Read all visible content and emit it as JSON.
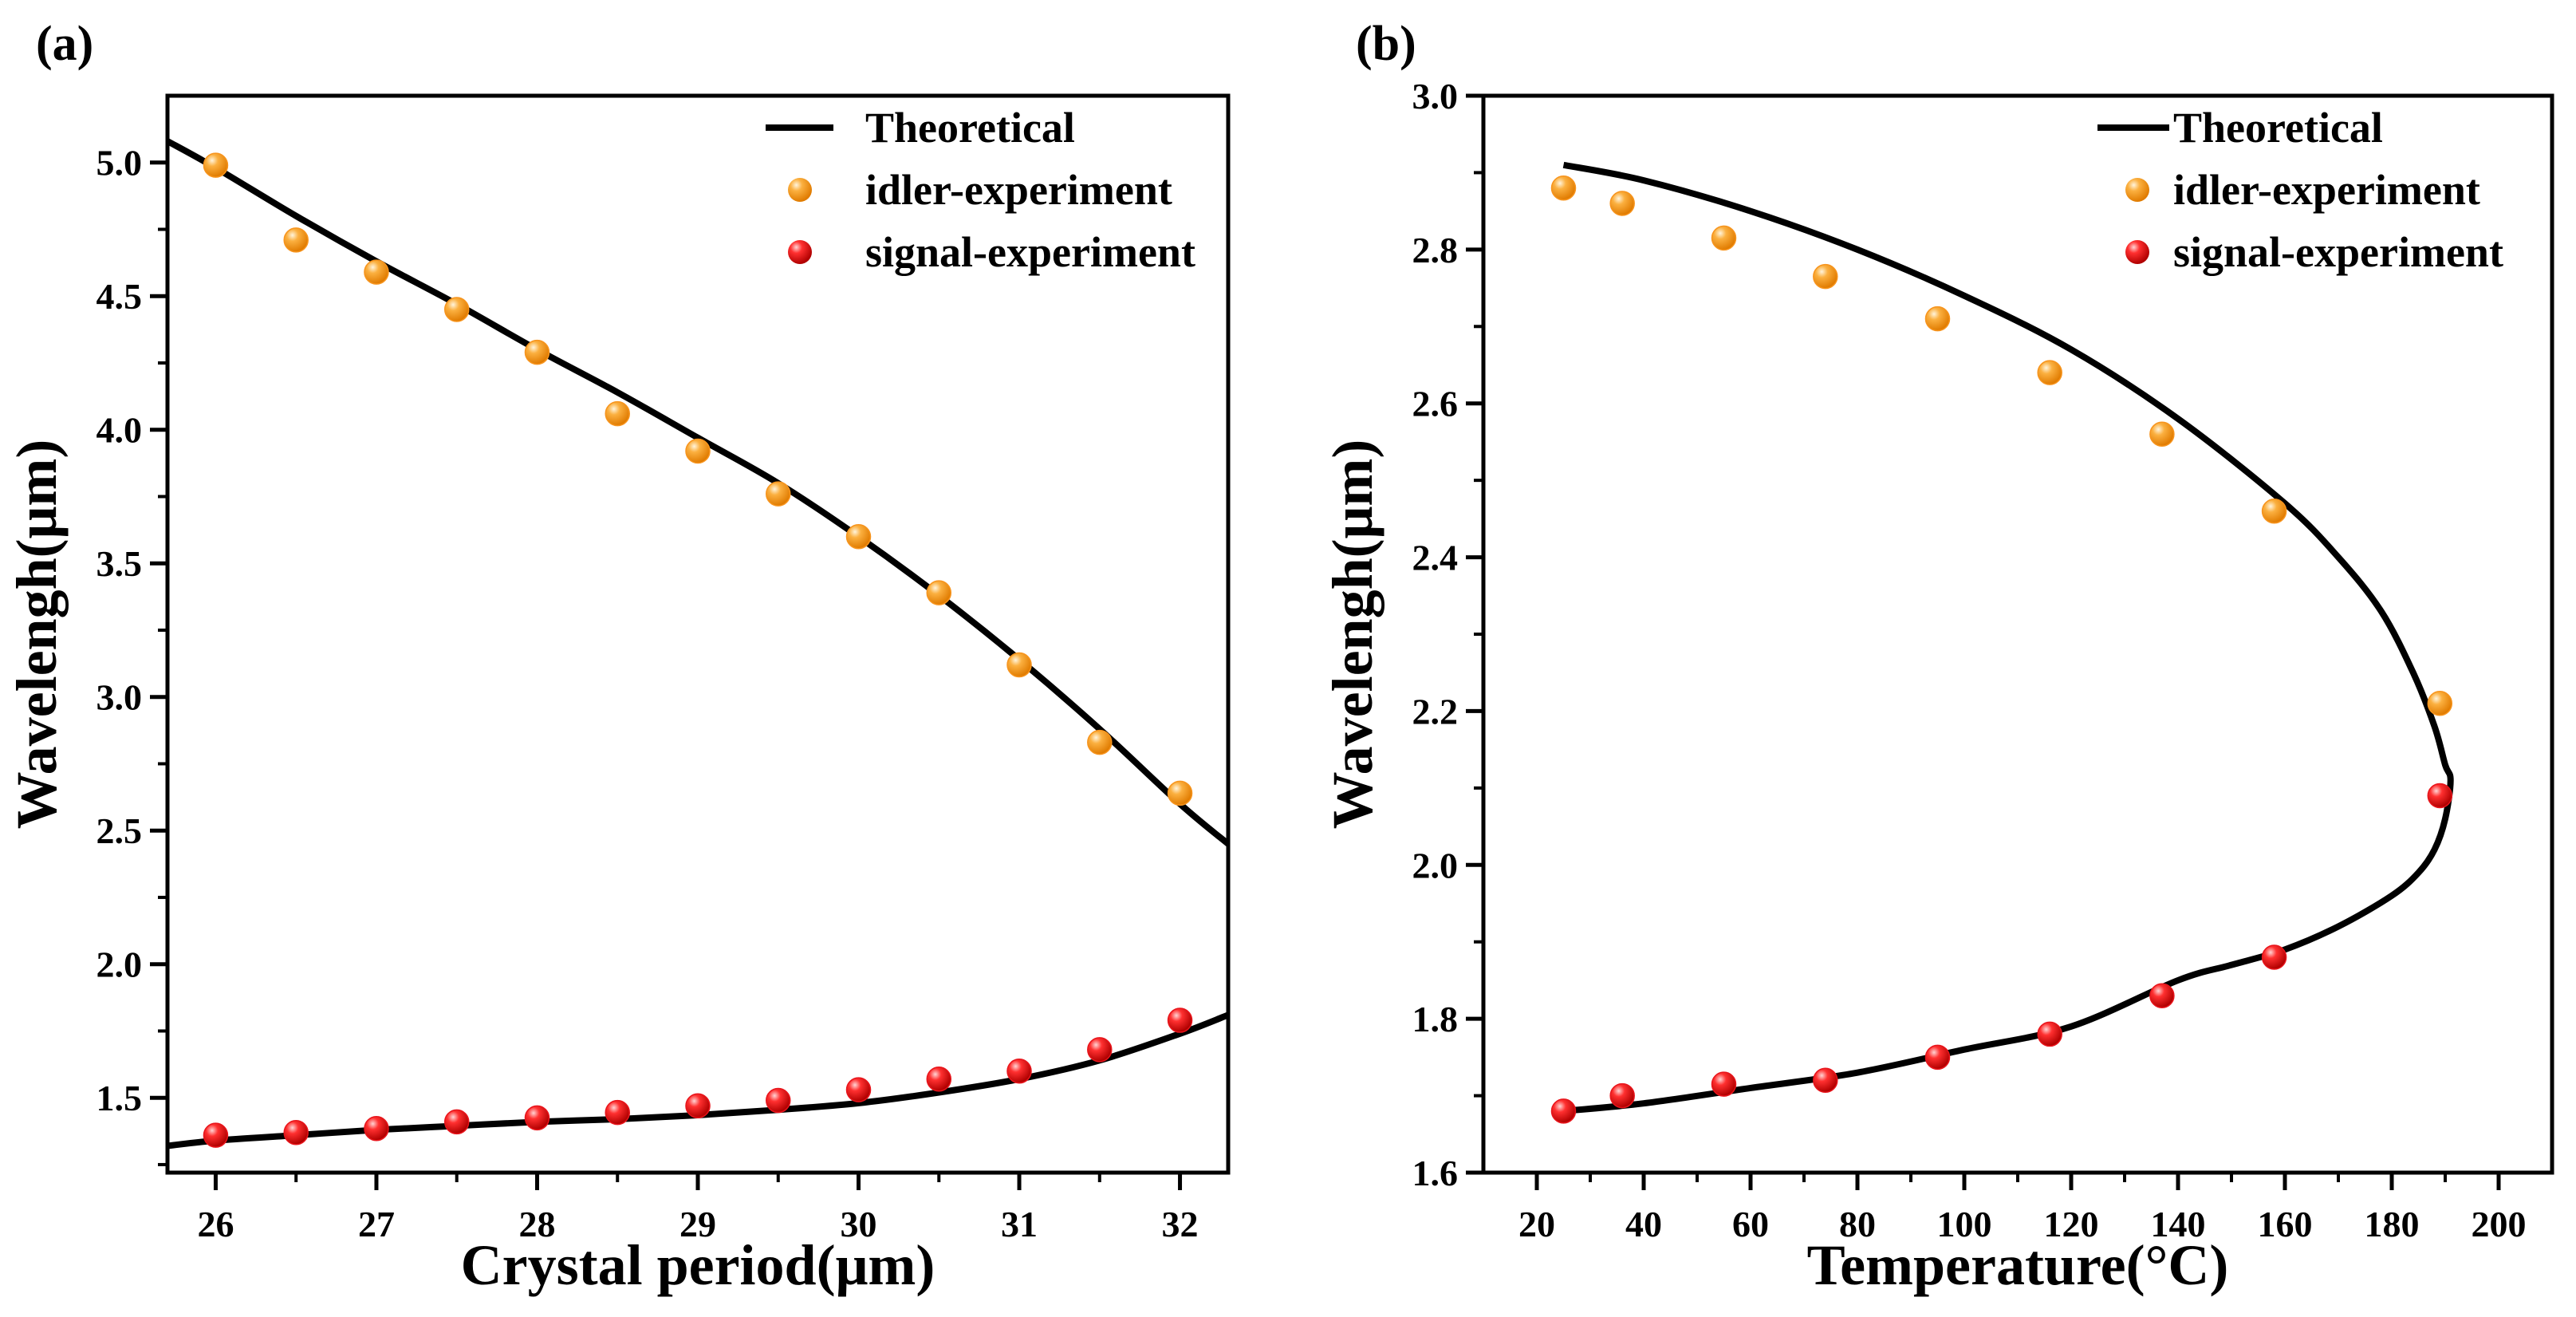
{
  "chart_data": [
    {
      "type": "scatter",
      "panel_label": "(a)",
      "xlabel": "Crystal period(μm)",
      "ylabel": "Wavelengh(μm)",
      "xlim": [
        25.7,
        32.3
      ],
      "ylim": [
        1.22,
        5.25
      ],
      "xticks": [
        26,
        27,
        28,
        29,
        30,
        31,
        32
      ],
      "xtick_labels": [
        "26",
        "27",
        "28",
        "29",
        "30",
        "31",
        "32"
      ],
      "minor_xticks": [
        26.5,
        27.5,
        28.5,
        29.5,
        30.5,
        31.5
      ],
      "yticks": [
        1.5,
        2.0,
        2.5,
        3.0,
        3.5,
        4.0,
        4.5,
        5.0
      ],
      "ytick_labels": [
        "1.5",
        "2.0",
        "2.5",
        "3.0",
        "3.5",
        "4.0",
        "4.5",
        "5.0"
      ],
      "minor_yticks": [
        1.25,
        1.75,
        2.25,
        2.75,
        3.25,
        3.75,
        4.25,
        4.75
      ],
      "legend_position": "top-right",
      "legend": [
        "Theoretical",
        "idler-experiment",
        "signal-experiment"
      ],
      "series": [
        {
          "name": "Theoretical",
          "kind": "line",
          "color": "#000000",
          "segments": [
            {
              "x": [
                25.7,
                26,
                26.5,
                27,
                27.5,
                28,
                28.5,
                29,
                29.5,
                30,
                30.5,
                31,
                31.5,
                32,
                32.3
              ],
              "y": [
                5.08,
                4.98,
                4.8,
                4.63,
                4.47,
                4.3,
                4.14,
                3.97,
                3.8,
                3.6,
                3.38,
                3.14,
                2.88,
                2.6,
                2.45
              ]
            },
            {
              "x": [
                25.7,
                26,
                26.5,
                27,
                27.5,
                28,
                28.5,
                29,
                29.5,
                30,
                30.5,
                31,
                31.5,
                32,
                32.3
              ],
              "y": [
                1.32,
                1.34,
                1.36,
                1.38,
                1.395,
                1.41,
                1.42,
                1.435,
                1.455,
                1.48,
                1.52,
                1.57,
                1.64,
                1.74,
                1.81
              ]
            }
          ]
        },
        {
          "name": "idler-experiment",
          "kind": "scatter",
          "color": "#f7941d",
          "x": [
            26,
            26.5,
            27,
            27.5,
            28,
            28.5,
            29,
            29.5,
            30,
            30.5,
            31,
            31.5,
            32
          ],
          "y": [
            4.99,
            4.71,
            4.59,
            4.45,
            4.29,
            4.06,
            3.92,
            3.76,
            3.6,
            3.39,
            3.12,
            2.83,
            2.64
          ]
        },
        {
          "name": "signal-experiment",
          "kind": "scatter",
          "color": "#e8141b",
          "x": [
            26,
            26.5,
            27,
            27.5,
            28,
            28.5,
            29,
            29.5,
            30,
            30.5,
            31,
            31.5,
            32
          ],
          "y": [
            1.36,
            1.37,
            1.385,
            1.41,
            1.425,
            1.445,
            1.47,
            1.49,
            1.53,
            1.57,
            1.6,
            1.68,
            1.79
          ]
        }
      ]
    },
    {
      "type": "scatter",
      "panel_label": "(b)",
      "xlabel": "Temperature(°C)",
      "ylabel": "Wavelengh(μm)",
      "xlim": [
        10,
        210
      ],
      "ylim": [
        1.6,
        3.0
      ],
      "xticks": [
        20,
        40,
        60,
        80,
        100,
        120,
        140,
        160,
        180,
        200
      ],
      "xtick_labels": [
        "20",
        "40",
        "60",
        "80",
        "100",
        "120",
        "140",
        "160",
        "180",
        "200"
      ],
      "minor_xticks": [
        30,
        50,
        70,
        90,
        110,
        130,
        150,
        170,
        190
      ],
      "yticks": [
        1.6,
        1.8,
        2.0,
        2.2,
        2.4,
        2.6,
        2.8,
        3.0
      ],
      "ytick_labels": [
        "1.6",
        "1.8",
        "2.0",
        "2.2",
        "2.4",
        "2.6",
        "2.8",
        "3.0"
      ],
      "minor_yticks": [
        1.7,
        1.9,
        2.1,
        2.3,
        2.5,
        2.7,
        2.9
      ],
      "legend_position": "top-right",
      "legend": [
        "Theoretical",
        "idler-experiment",
        "signal-experiment"
      ],
      "series": [
        {
          "name": "Theoretical",
          "kind": "line",
          "color": "#000000",
          "segments": [
            {
              "x": [
                25,
                40,
                60,
                80,
                100,
                120,
                140,
                160,
                170,
                178,
                184,
                188,
                190,
                191,
                190,
                188,
                185,
                180,
                170,
                160,
                150,
                140,
                120,
                100,
                80,
                60,
                40,
                25
              ],
              "y": [
                2.91,
                2.89,
                2.85,
                2.8,
                2.74,
                2.67,
                2.58,
                2.47,
                2.4,
                2.33,
                2.25,
                2.18,
                2.13,
                2.11,
                2.06,
                2.02,
                1.99,
                1.96,
                1.92,
                1.89,
                1.87,
                1.85,
                1.79,
                1.76,
                1.73,
                1.71,
                1.69,
                1.68
              ]
            }
          ]
        },
        {
          "name": "idler-experiment",
          "kind": "scatter",
          "color": "#f7941d",
          "x": [
            25,
            36,
            55,
            74,
            95,
            116,
            137,
            158,
            189
          ],
          "y": [
            2.88,
            2.86,
            2.815,
            2.765,
            2.71,
            2.64,
            2.56,
            2.46,
            2.21
          ]
        },
        {
          "name": "signal-experiment",
          "kind": "scatter",
          "color": "#e8141b",
          "x": [
            25,
            36,
            55,
            74,
            95,
            116,
            137,
            158,
            189
          ],
          "y": [
            1.68,
            1.7,
            1.715,
            1.72,
            1.75,
            1.78,
            1.83,
            1.88,
            2.09
          ]
        }
      ]
    }
  ]
}
